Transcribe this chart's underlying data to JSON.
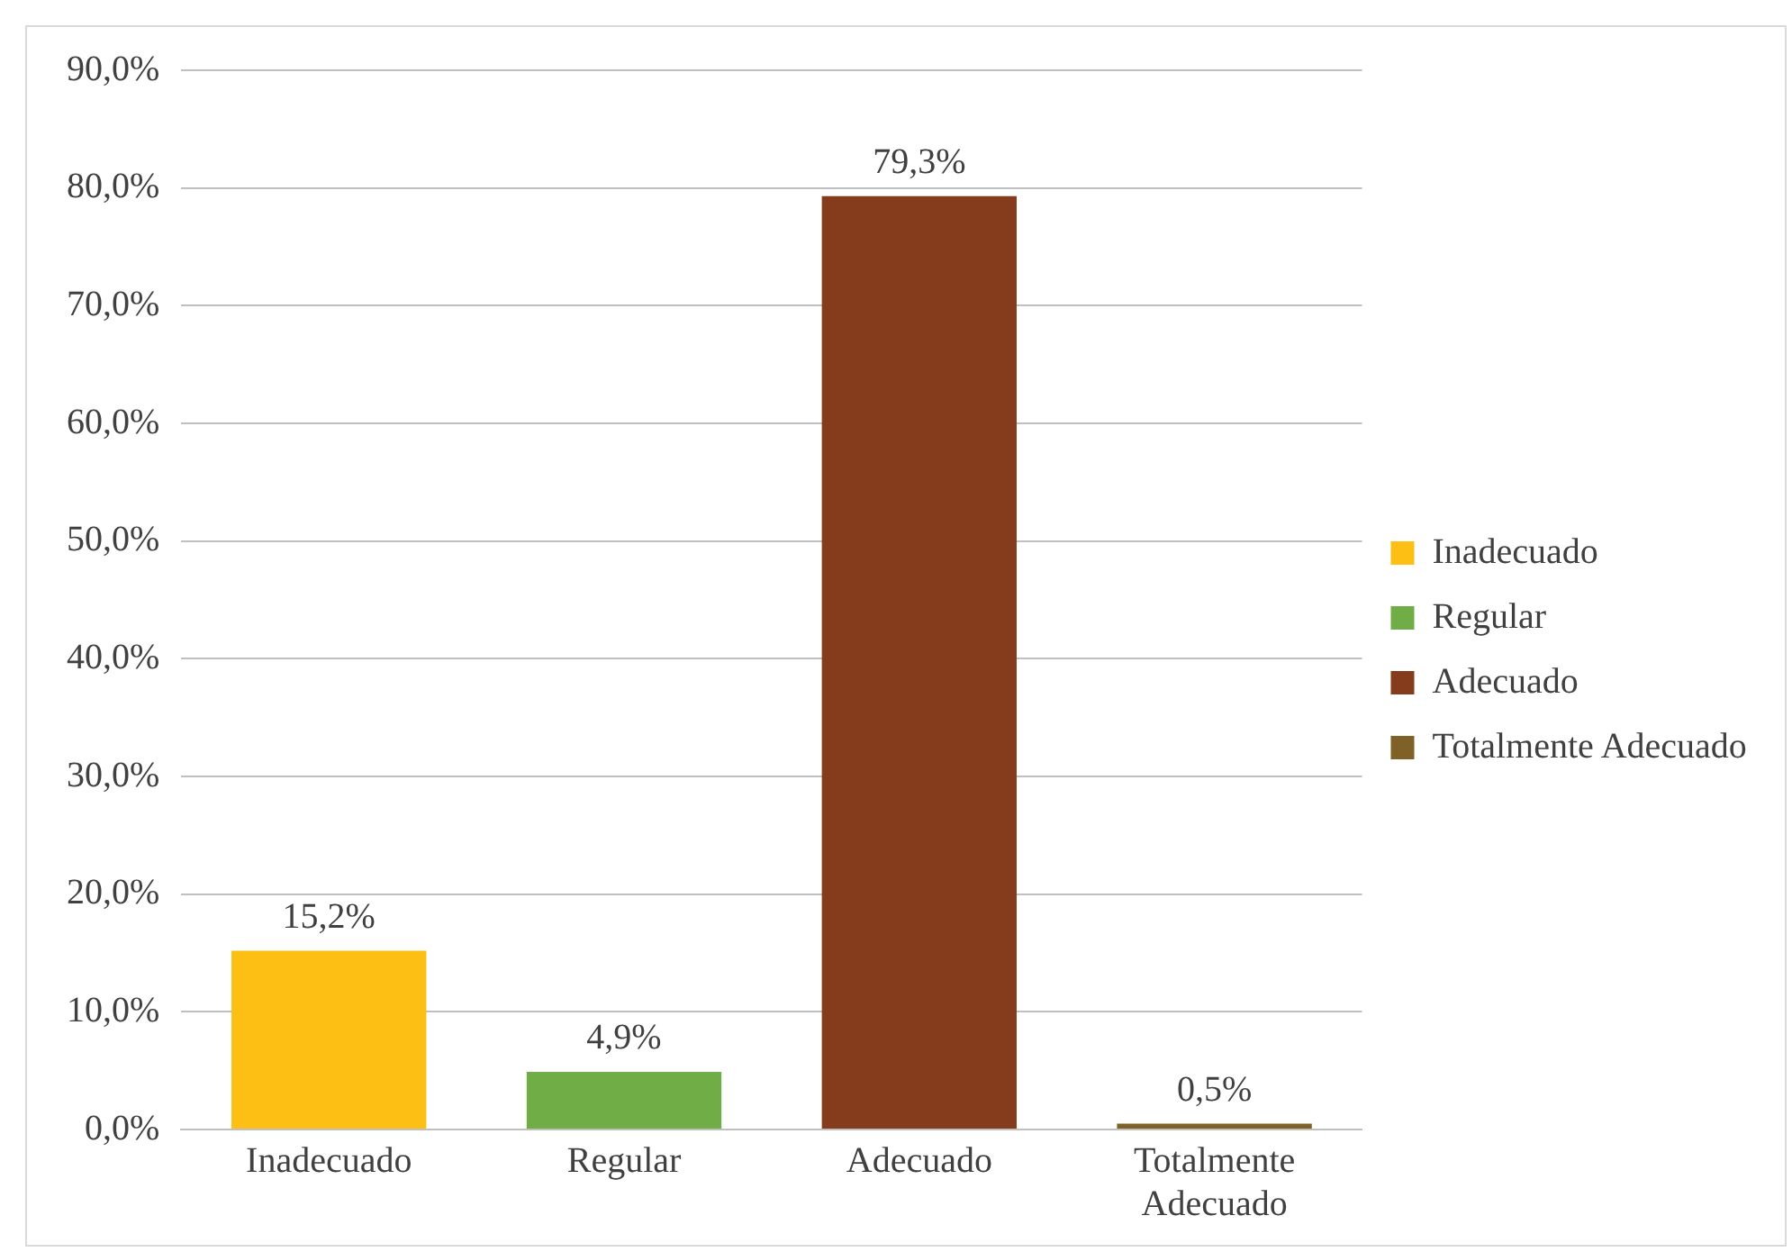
{
  "chart_data": {
    "type": "bar",
    "categories": [
      "Inadecuado",
      "Regular",
      "Adecuado",
      "Totalmente Adecuado"
    ],
    "series": [
      {
        "name": "Inadecuado",
        "color": "#fdbf14",
        "values": [
          15.2,
          null,
          null,
          null
        ],
        "value_labels": [
          "15,2%",
          null,
          null,
          null
        ]
      },
      {
        "name": "Regular",
        "color": "#70ad47",
        "values": [
          null,
          4.9,
          null,
          null
        ],
        "value_labels": [
          null,
          "4,9%",
          null,
          null
        ]
      },
      {
        "name": "Adecuado",
        "color": "#843c1c",
        "values": [
          null,
          null,
          79.3,
          null
        ],
        "value_labels": [
          null,
          null,
          "79,3%",
          null
        ]
      },
      {
        "name": "Totalmente Adecuado",
        "color": "#7f6026",
        "values": [
          null,
          null,
          null,
          0.5
        ],
        "value_labels": [
          null,
          null,
          null,
          "0,5%"
        ]
      }
    ],
    "ylim": [
      0,
      90
    ],
    "yticks": [
      {
        "value": 0,
        "label": "0,0%"
      },
      {
        "value": 10,
        "label": "10,0%"
      },
      {
        "value": 20,
        "label": "20,0%"
      },
      {
        "value": 30,
        "label": "30,0%"
      },
      {
        "value": 40,
        "label": "40,0%"
      },
      {
        "value": 50,
        "label": "50,0%"
      },
      {
        "value": 60,
        "label": "60,0%"
      },
      {
        "value": 70,
        "label": "70,0%"
      },
      {
        "value": 80,
        "label": "80,0%"
      },
      {
        "value": 90,
        "label": "90,0%"
      }
    ],
    "grid": "y",
    "legend": "right"
  }
}
